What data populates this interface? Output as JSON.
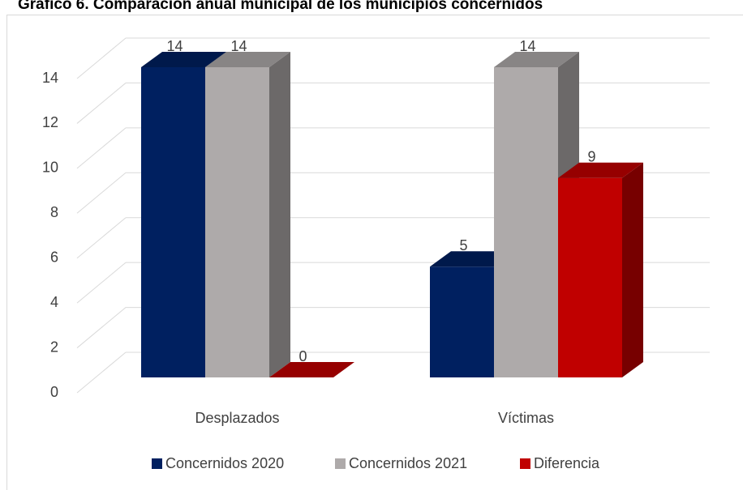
{
  "chart_data": {
    "type": "bar3d",
    "title": "Gráfico 6. Comparación anual municipal de los municipios concernidos",
    "categories": [
      "Desplazados",
      "Víctimas"
    ],
    "series": [
      {
        "name": "Concernidos 2020",
        "color": "#002060",
        "values": [
          14,
          5
        ]
      },
      {
        "name": "Concernidos 2021",
        "color": "#aeaaaa",
        "values": [
          14,
          14
        ]
      },
      {
        "name": "Diferencia",
        "color": "#c00000",
        "values": [
          0,
          9
        ]
      }
    ],
    "ylim": [
      0,
      14
    ],
    "yticks": [
      0,
      2,
      4,
      6,
      8,
      10,
      12,
      14
    ],
    "grid": true,
    "legend": "bottom"
  }
}
